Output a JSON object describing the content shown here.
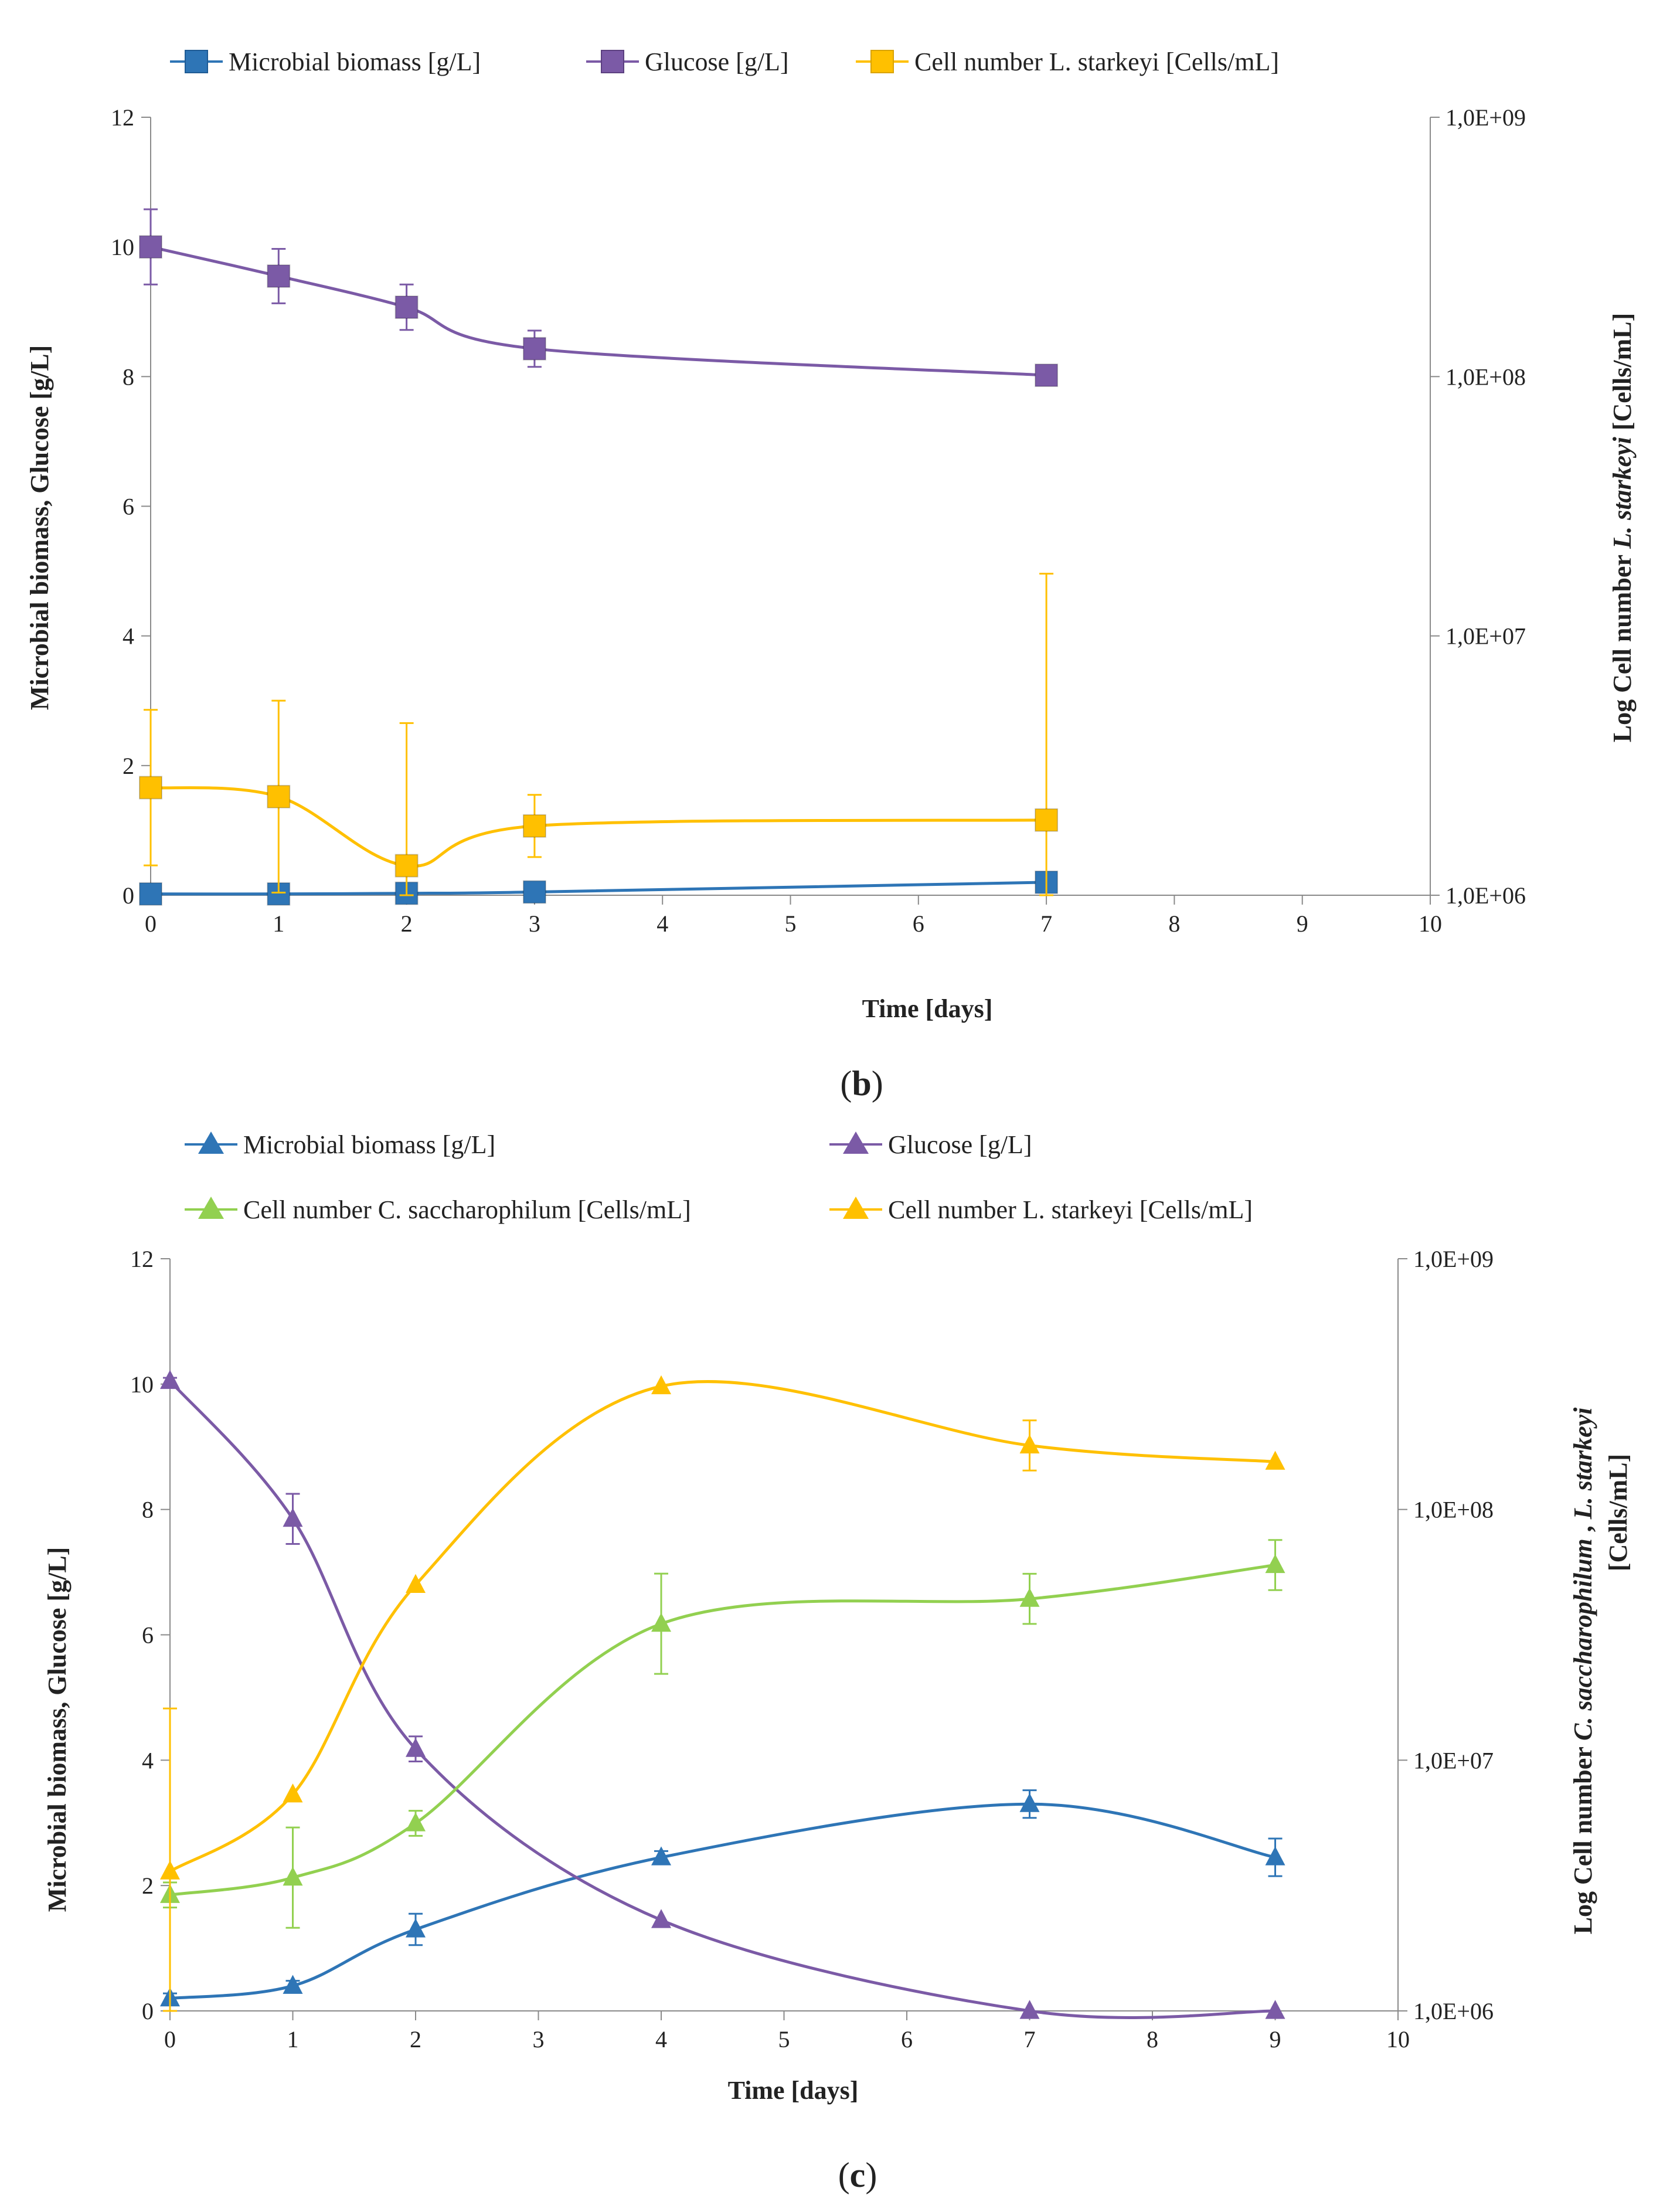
{
  "panel_labels": {
    "b": "b",
    "c": "c"
  },
  "chart_data": [
    {
      "type": "line",
      "panel": "b",
      "xlabel": "Time [days]",
      "ylabel": "Microbial biomass, Glucose [g/L]",
      "y2label_parts": [
        "Log Cell number ",
        "L.",
        "  ",
        "starkeyi",
        " [Cells/mL]"
      ],
      "xlim": [
        0,
        10
      ],
      "ylim": [
        0,
        12
      ],
      "y2lim": [
        1000000,
        1000000000
      ],
      "y2scale": "log",
      "x_ticks": [
        "0",
        "1",
        "2",
        "3",
        "4",
        "5",
        "6",
        "7",
        "8",
        "9",
        "10"
      ],
      "y_ticks": [
        "0",
        "2",
        "4",
        "6",
        "8",
        "10",
        "12"
      ],
      "y2_ticks": [
        "1,0E+06",
        "1,0E+07",
        "1,0E+08",
        "1,0E+09"
      ],
      "legend_position": "top",
      "series": [
        {
          "name": "Microbial biomass [g/L]",
          "axis": "left",
          "marker": "square",
          "color": "#2E75B6",
          "x": [
            0,
            1,
            2,
            3,
            7
          ],
          "y": [
            0.02,
            0.02,
            0.03,
            0.05,
            0.2
          ],
          "err": [
            0,
            0,
            0,
            0,
            0
          ]
        },
        {
          "name": "Glucose [g/L]",
          "axis": "left",
          "marker": "square",
          "color": "#7B5AA6",
          "x": [
            0,
            1,
            2,
            3,
            7
          ],
          "y": [
            10.0,
            9.55,
            9.07,
            8.43,
            8.02
          ],
          "err": [
            0.58,
            0.42,
            0.35,
            0.28,
            0
          ]
        },
        {
          "name": "Cell number L. starkeyi [Cells/mL]",
          "axis": "right",
          "marker": "square",
          "color": "#FFC000",
          "x": [
            0,
            1,
            2,
            3,
            7
          ],
          "y": [
            2600000,
            2400000,
            1300000,
            1850000,
            1950000
          ],
          "err": [
            0.3,
            0.37,
            0.55,
            0.12,
            0.95
          ]
        }
      ]
    },
    {
      "type": "line",
      "panel": "c",
      "xlabel": "Time [days]",
      "ylabel": "Microbial biomass, Glucose [g/L]",
      "y2label_line1_parts": [
        "Log Cell number ",
        "C. saccharophilum",
        " , ",
        "L. starkeyi"
      ],
      "y2label_line2": "[Cells/mL]",
      "xlim": [
        0,
        10
      ],
      "ylim": [
        0,
        12
      ],
      "y2lim": [
        1000000,
        1000000000
      ],
      "y2scale": "log",
      "x_ticks": [
        "0",
        "1",
        "2",
        "3",
        "4",
        "5",
        "6",
        "7",
        "8",
        "9",
        "10"
      ],
      "y_ticks": [
        "0",
        "2",
        "4",
        "6",
        "8",
        "10",
        "12"
      ],
      "y2_ticks": [
        "1,0E+06",
        "1,0E+07",
        "1,0E+08",
        "1,0E+09"
      ],
      "legend_position": "top",
      "series": [
        {
          "name": "Microbial biomass [g/L]",
          "axis": "left",
          "marker": "triangle",
          "color": "#2E75B6",
          "x": [
            0,
            1,
            2,
            4,
            7,
            9
          ],
          "y": [
            0.2,
            0.4,
            1.3,
            2.45,
            3.3,
            2.45
          ],
          "err": [
            0.08,
            0.08,
            0.25,
            0.1,
            0.22,
            0.3
          ]
        },
        {
          "name": "Glucose [g/L]",
          "axis": "left",
          "marker": "triangle",
          "color": "#7B5AA6",
          "x": [
            0,
            1,
            2,
            4,
            7,
            9
          ],
          "y": [
            10.05,
            7.85,
            4.18,
            1.45,
            0.0,
            0.0
          ],
          "err": [
            0.05,
            0.4,
            0.2,
            0,
            0,
            0
          ]
        },
        {
          "name": "Cell number C. saccharophilum [Cells/mL]",
          "axis": "right",
          "marker": "triangle",
          "color": "#92D050",
          "x": [
            0,
            1,
            2,
            4,
            7,
            9
          ],
          "y": [
            2900000,
            3400000,
            5600000,
            35000000,
            44000000,
            60000000
          ],
          "err": [
            0.05,
            0.2,
            0.05,
            0.2,
            0.1,
            0.1
          ]
        },
        {
          "name": "Cell number L. starkeyi [Cells/mL]",
          "axis": "right",
          "marker": "triangle",
          "color": "#FFC000",
          "x": [
            0,
            1,
            2,
            4,
            7,
            9
          ],
          "y": [
            3600000,
            7300000,
            50000000,
            310000000,
            180000000,
            155000000
          ],
          "err": [
            0.65,
            0,
            0,
            0,
            0.1,
            0
          ]
        }
      ]
    }
  ]
}
